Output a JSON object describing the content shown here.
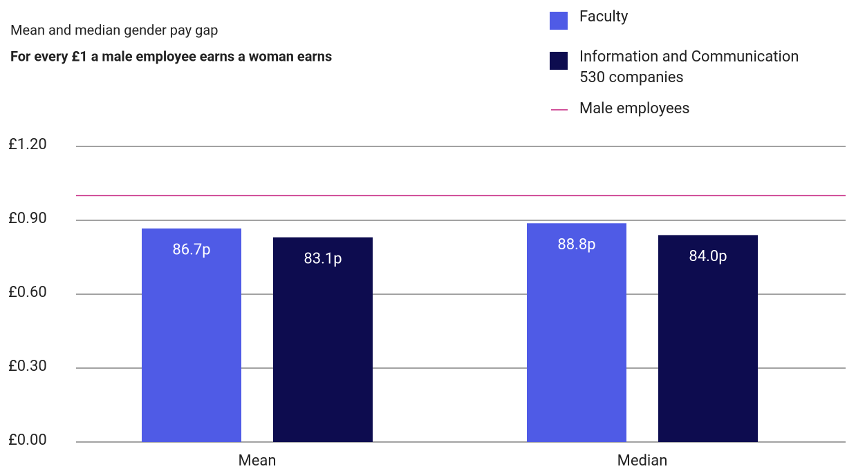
{
  "chart_data": {
    "type": "bar",
    "title": "Mean and median gender pay gap",
    "subtitle": "For every £1 a male employee earns a woman earns",
    "categories": [
      "Mean",
      "Median"
    ],
    "series": [
      {
        "name": "Faculty",
        "color": "#4f5be6",
        "values": [
          0.867,
          0.888
        ],
        "value_labels": [
          "86.7p",
          "88.8p"
        ]
      },
      {
        "name": "Information and Communication\n530 companies",
        "color": "#0d0c4f",
        "values": [
          0.831,
          0.84
        ],
        "value_labels": [
          "83.1p",
          "84.0p"
        ]
      }
    ],
    "reference_line": {
      "name": "Male employees",
      "value": 1,
      "color": "#c2187a"
    },
    "ylim": [
      0,
      1.2
    ],
    "yticks": [
      {
        "value": 0,
        "label": "£0.00"
      },
      {
        "value": 0.3,
        "label": "£0.30"
      },
      {
        "value": 0.6,
        "label": "£0.60"
      },
      {
        "value": 0.9,
        "label": "£0.90"
      },
      {
        "value": 1.2,
        "label": "£1.20"
      }
    ],
    "grid": true
  }
}
